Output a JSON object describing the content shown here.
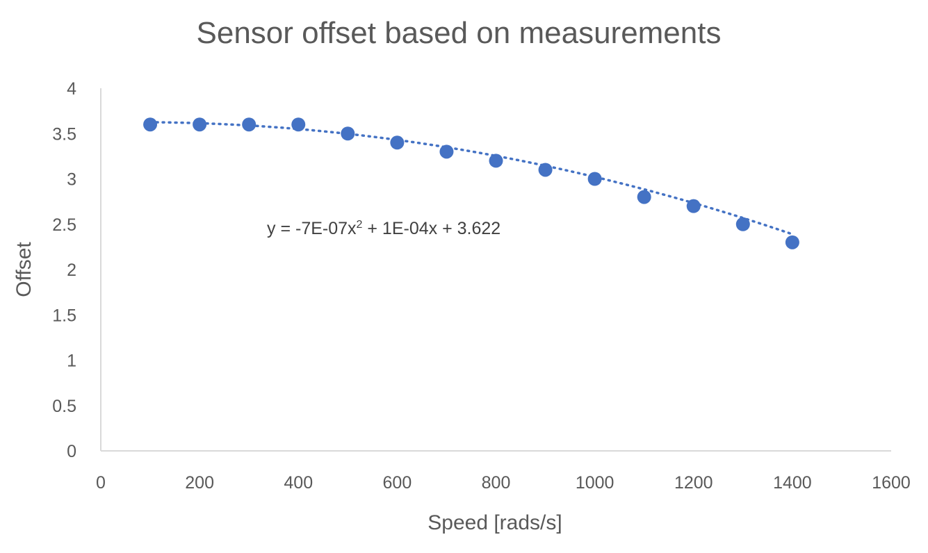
{
  "chart_data": {
    "type": "scatter",
    "title": "Sensor offset based on measurements",
    "xlabel": "Speed [rads/s]",
    "ylabel": "Offset",
    "xlim": [
      0,
      1600
    ],
    "ylim": [
      0,
      4
    ],
    "x_ticks": [
      0,
      200,
      400,
      600,
      800,
      1000,
      1200,
      1400,
      1600
    ],
    "y_ticks": [
      0,
      0.5,
      1,
      1.5,
      2,
      2.5,
      3,
      3.5,
      4
    ],
    "grid": false,
    "legend": "none",
    "series": [
      {
        "name": "Offset",
        "x": [
          100,
          200,
          300,
          400,
          500,
          600,
          700,
          800,
          900,
          1000,
          1100,
          1200,
          1300,
          1400
        ],
        "y": [
          3.6,
          3.6,
          3.6,
          3.6,
          3.5,
          3.4,
          3.3,
          3.2,
          3.1,
          3.0,
          2.8,
          2.7,
          2.5,
          2.3
        ],
        "color": "#4472C4"
      }
    ],
    "trendline": {
      "type": "polynomial",
      "order": 2,
      "coefficients": {
        "a": -7e-07,
        "b": 0.0001,
        "c": 3.622
      },
      "x_range": [
        100,
        1400
      ],
      "style": "dotted",
      "color": "#4472C4",
      "equation_text": {
        "prefix": "y = -7E-07x",
        "exponent": "2",
        "suffix": " + 1E-04x + 3.622"
      }
    },
    "colors": {
      "text": "#595959",
      "title": "#595959",
      "axis": "#D9D9D9",
      "marker": "#4472C4"
    }
  }
}
